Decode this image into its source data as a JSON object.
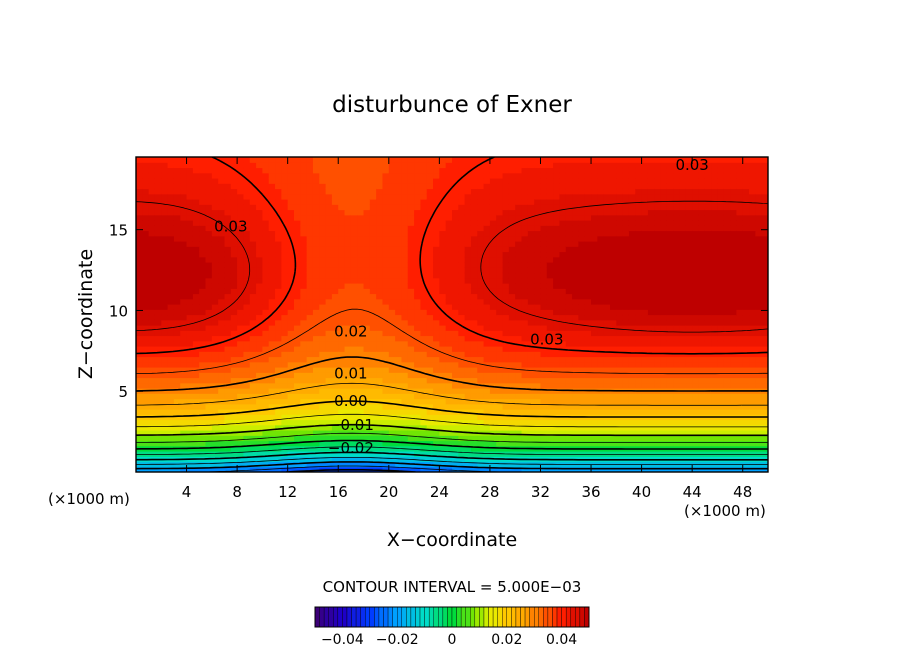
{
  "chart_data": {
    "type": "heatmap",
    "title": "disturbunce of Exner",
    "xlabel": "X−coordinate",
    "ylabel": "Z−coordinate",
    "x_unit_left": "(×1000 m)",
    "x_unit_right": "(×1000 m)",
    "xlim": [
      0,
      50
    ],
    "ylim": [
      0,
      19.5
    ],
    "xticks": [
      4,
      8,
      12,
      16,
      20,
      24,
      28,
      32,
      36,
      40,
      44,
      48
    ],
    "yticks": [
      5,
      10,
      15
    ],
    "contour_interval_text": "CONTOUR INTERVAL = 5.000E−03",
    "contour_interval": 0.005,
    "contour_labels": [
      {
        "text": "0.03",
        "x": 7.5,
        "z": 15.2
      },
      {
        "text": "0.03",
        "x": 44,
        "z": 19.0
      },
      {
        "text": "0.03",
        "x": 32.5,
        "z": 8.2
      },
      {
        "text": "0.02",
        "x": 17,
        "z": 8.7
      },
      {
        "text": "0.01",
        "x": 17,
        "z": 6.1
      },
      {
        "text": "0.00",
        "x": 17,
        "z": 4.4
      },
      {
        "text": "−0.01",
        "x": 17,
        "z": 2.9
      },
      {
        "text": "−0.02",
        "x": 17,
        "z": 1.5
      }
    ],
    "colorbar": {
      "range": [
        -0.05,
        0.05
      ],
      "ticks": [
        {
          "value": -0.04,
          "label": "−0.04"
        },
        {
          "value": -0.02,
          "label": "−0.02"
        },
        {
          "value": 0,
          "label": "0"
        },
        {
          "value": 0.02,
          "label": "0.02"
        },
        {
          "value": 0.04,
          "label": "0.04"
        }
      ]
    },
    "field_description": "lenticular positive maxima ~0.04 near z=12 at x=0 and x=44; saddle minimum aloft near x=17; negative values ~-0.025 near surface at x=17",
    "colors": {
      "frame": "#000000",
      "background": "#ffffff"
    }
  }
}
